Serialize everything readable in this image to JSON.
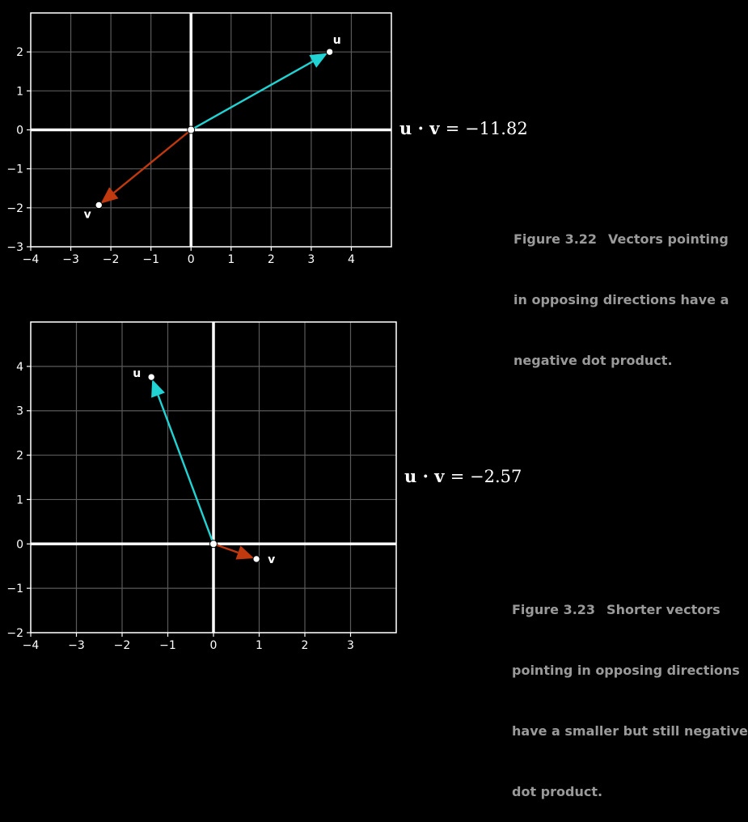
{
  "chart_data": [
    {
      "type": "vector-plot",
      "xlim": [
        -4,
        5
      ],
      "ylim": [
        -3,
        3
      ],
      "xticks": [
        "−4",
        "−3",
        "−2",
        "−1",
        "0",
        "1",
        "2",
        "3",
        "4"
      ],
      "yticks": [
        "−3",
        "−2",
        "−1",
        "0",
        "1",
        "2"
      ],
      "grid": true,
      "vectors": [
        {
          "label": "u",
          "x": 3.46,
          "y": 2.0,
          "color": "#22d3d3"
        },
        {
          "label": "v",
          "x": -2.3,
          "y": -1.93,
          "color": "#c0390f"
        }
      ],
      "equation": {
        "bold": "u · v",
        "value": "= −11.82"
      }
    },
    {
      "type": "vector-plot",
      "xlim": [
        -4,
        4
      ],
      "ylim": [
        -2,
        5
      ],
      "xticks": [
        "−4",
        "−3",
        "−2",
        "−1",
        "0",
        "1",
        "2",
        "3"
      ],
      "yticks": [
        "−2",
        "−1",
        "0",
        "1",
        "2",
        "3",
        "4"
      ],
      "grid": true,
      "vectors": [
        {
          "label": "u",
          "x": -1.36,
          "y": 3.76,
          "color": "#22d3d3"
        },
        {
          "label": "v",
          "x": 0.94,
          "y": -0.34,
          "color": "#c0390f"
        }
      ],
      "equation": {
        "bold": "u · v",
        "value": "= −2.57"
      }
    }
  ],
  "captions": [
    {
      "number": "Figure 3.22",
      "lines": [
        "Vectors pointing",
        "in opposing directions have a",
        "negative dot product."
      ]
    },
    {
      "number": "Figure 3.23",
      "lines": [
        "Shorter vectors",
        "pointing in opposing directions",
        "have a smaller but still negative",
        "dot product."
      ]
    }
  ]
}
